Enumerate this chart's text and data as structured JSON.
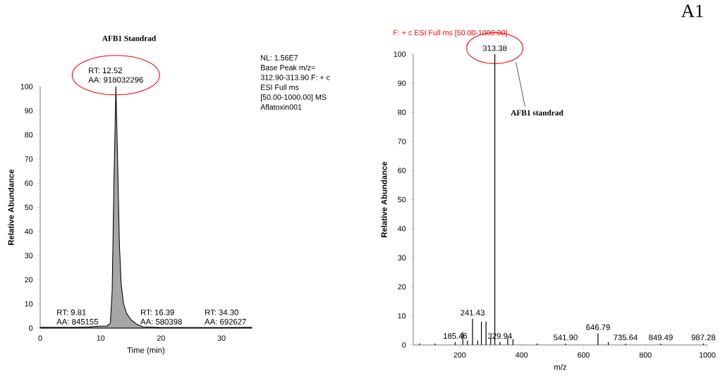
{
  "chart_data": [
    {
      "type": "area",
      "title": "AFB1 Standrad",
      "xlabel": "Time (min)",
      "ylabel": "Relative Abundance",
      "x": [
        0,
        2,
        4,
        6,
        8,
        9.8,
        11,
        11.6,
        11.9,
        12.2,
        12.52,
        12.8,
        13.1,
        13.4,
        13.8,
        14.3,
        15,
        16,
        17,
        20,
        25,
        30,
        35
      ],
      "series": [
        {
          "color": "#a6a6a6",
          "values": [
            0.3,
            0.3,
            0.3,
            0.3,
            0.4,
            0.8,
            0.8,
            2,
            15,
            60,
            100,
            70,
            35,
            18,
            10,
            6,
            3.5,
            1.5,
            0.5,
            0.2,
            0.2,
            0.2,
            0.3
          ]
        }
      ],
      "xlim": [
        0,
        35
      ],
      "xticks": [
        0,
        10,
        20,
        30
      ],
      "ylim": [
        0,
        100
      ],
      "yticks": [
        0,
        10,
        20,
        30,
        40,
        50,
        60,
        70,
        80,
        90,
        100
      ],
      "annotations": [
        {
          "text": "RT: 12.52",
          "x": 12.52,
          "y": 100
        },
        {
          "text": "AA: 918032296",
          "x": 12.52,
          "y": 100
        },
        {
          "text": "RT: 9.81",
          "x": 9.81,
          "y": 1
        },
        {
          "text": "AA: 845155",
          "x": 9.81,
          "y": 1
        },
        {
          "text": "RT: 16.39",
          "x": 16.39,
          "y": 1
        },
        {
          "text": "AA: 580398",
          "x": 16.39,
          "y": 1
        },
        {
          "text": "RT: 34.30",
          "x": 34.3,
          "y": 1
        },
        {
          "text": "AA: 692627",
          "x": 34.3,
          "y": 1
        },
        "NL: 1.56E7",
        "Base Peak m/z=",
        "312.90-313.90 F: + c",
        "ESI Full ms",
        "[50.00-1000.00]  MS",
        "Aflatoxin001"
      ]
    },
    {
      "type": "bar",
      "title": "F: + c ESI Full ms [50.00-1000.00]",
      "xlabel": "m/z",
      "ylabel": "Relative Abundance",
      "x": [
        70,
        120,
        185.46,
        210,
        225,
        241.43,
        258,
        270,
        285,
        300,
        313.38,
        329.94,
        355,
        372,
        450,
        541.9,
        646.79,
        680,
        735.64,
        849.49,
        987.28
      ],
      "series": [
        {
          "color": "#000000",
          "values": [
            0.5,
            0.5,
            1,
            4.5,
            1.5,
            9,
            1.5,
            8,
            8,
            2.5,
            100,
            1,
            2.5,
            2,
            0.5,
            0.5,
            4,
            1,
            0.5,
            0.5,
            0.5
          ]
        }
      ],
      "xlim": [
        50,
        1000
      ],
      "xticks": [
        200,
        400,
        600,
        800,
        1000
      ],
      "ylim": [
        0,
        100
      ],
      "yticks": [
        0,
        10,
        20,
        30,
        40,
        50,
        60,
        70,
        80,
        90,
        100
      ],
      "annotations": [
        {
          "text": "185.46",
          "x": 185.46,
          "y": 1
        },
        {
          "text": "241.43",
          "x": 241.43,
          "y": 9
        },
        {
          "text": "313.38",
          "x": 313.38,
          "y": 100
        },
        {
          "text": "329.94",
          "x": 329.94,
          "y": 1
        },
        {
          "text": "541.90",
          "x": 541.9,
          "y": 0.5
        },
        {
          "text": "646.79",
          "x": 646.79,
          "y": 4
        },
        {
          "text": "735.64",
          "x": 735.64,
          "y": 0.5
        },
        {
          "text": "849.49",
          "x": 849.49,
          "y": 0.5
        },
        {
          "text": "987.28",
          "x": 987.28,
          "y": 0.5
        },
        "AFB1 standrad",
        "A1"
      ]
    }
  ]
}
